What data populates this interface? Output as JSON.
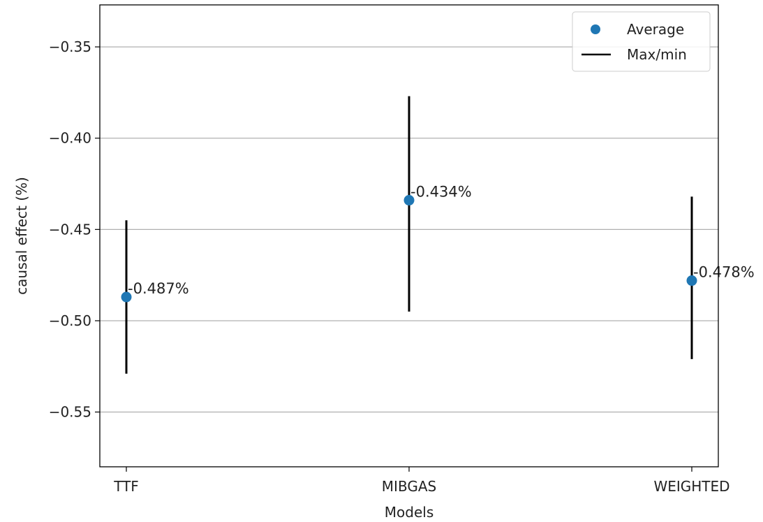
{
  "chart_data": {
    "type": "scatter",
    "title": "",
    "xlabel": "Models",
    "ylabel": "causal effect (%)",
    "categories": [
      "TTF",
      "MIBGAS",
      "WEIGHTED"
    ],
    "ylim": [
      -0.58,
      -0.327
    ],
    "yticks": [
      -0.55,
      -0.5,
      -0.45,
      -0.4,
      -0.35
    ],
    "ytick_labels": [
      "−0.55",
      "−0.50",
      "−0.45",
      "−0.40",
      "−0.35"
    ],
    "grid": "horizontal",
    "legend_placement": "top-right",
    "series": [
      {
        "name": "Average",
        "marker": "dot",
        "color": "#1f77b4",
        "values": [
          -0.487,
          -0.434,
          -0.478
        ],
        "labels": [
          "-0.487%",
          "-0.434%",
          "-0.478%"
        ]
      },
      {
        "name": "Max/min",
        "marker": "vertical-line",
        "color": "#000000",
        "max": [
          -0.445,
          -0.377,
          -0.432
        ],
        "min": [
          -0.529,
          -0.495,
          -0.521
        ]
      }
    ]
  }
}
